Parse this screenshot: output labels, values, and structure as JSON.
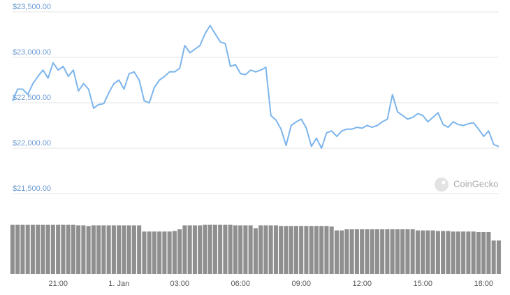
{
  "chart_data": {
    "type": "line",
    "yticks": [
      {
        "value": 23500,
        "label": "$23,500.00"
      },
      {
        "value": 23000,
        "label": "$23,000.00"
      },
      {
        "value": 22500,
        "label": "$22,500.00"
      },
      {
        "value": 22000,
        "label": "$22,000.00"
      },
      {
        "value": 21500,
        "label": "$21,500.00"
      }
    ],
    "ylim": [
      21500,
      23500
    ],
    "grid": true,
    "color": "#7cb5ec",
    "volume_color": "#8f8f8f",
    "volume_lim": [
      0,
      100
    ],
    "watermark": "CoinGecko",
    "categories": [
      null,
      null,
      null,
      null,
      null,
      null,
      null,
      null,
      null,
      "21:00",
      null,
      null,
      null,
      null,
      null,
      null,
      null,
      null,
      null,
      null,
      null,
      "1. Jan",
      null,
      null,
      null,
      null,
      null,
      null,
      null,
      null,
      null,
      null,
      null,
      "03:00",
      null,
      null,
      null,
      null,
      null,
      null,
      null,
      null,
      null,
      null,
      null,
      "06:00",
      null,
      null,
      null,
      null,
      null,
      null,
      null,
      null,
      null,
      null,
      null,
      "09:00",
      null,
      null,
      null,
      null,
      null,
      null,
      null,
      null,
      null,
      null,
      null,
      "12:00",
      null,
      null,
      null,
      null,
      null,
      null,
      null,
      null,
      null,
      null,
      null,
      "15:00",
      null,
      null,
      null,
      null,
      null,
      null,
      null,
      null,
      null,
      null,
      null,
      "18:00",
      null,
      null,
      null
    ],
    "values": [
      22520,
      22650,
      22650,
      22590,
      22710,
      22790,
      22860,
      22770,
      22940,
      22860,
      22900,
      22790,
      22860,
      22630,
      22710,
      22650,
      22440,
      22480,
      22490,
      22610,
      22710,
      22750,
      22650,
      22820,
      22840,
      22750,
      22520,
      22500,
      22670,
      22750,
      22790,
      22840,
      22840,
      22880,
      23130,
      23050,
      23090,
      23130,
      23260,
      23350,
      23260,
      23170,
      23150,
      22900,
      22920,
      22820,
      22810,
      22860,
      22840,
      22860,
      22890,
      22360,
      22310,
      22210,
      22030,
      22250,
      22290,
      22320,
      22220,
      22020,
      22110,
      22000,
      22170,
      22190,
      22130,
      22190,
      22210,
      22210,
      22230,
      22220,
      22250,
      22230,
      22250,
      22290,
      22320,
      22590,
      22400,
      22360,
      22320,
      22340,
      22380,
      22360,
      22290,
      22340,
      22390,
      22260,
      22230,
      22290,
      22260,
      22250,
      22270,
      22280,
      22210,
      22130,
      22190,
      22040,
      22020
    ],
    "volume": [
      88,
      88,
      88,
      88,
      88,
      88,
      88,
      88,
      88,
      88,
      88,
      88,
      88,
      87,
      87,
      86,
      87,
      87,
      87,
      87,
      87,
      87,
      87,
      87,
      87,
      87,
      76,
      76,
      76,
      76,
      76,
      76,
      77,
      80,
      87,
      87,
      87,
      87,
      88,
      88,
      88,
      88,
      88,
      88,
      87,
      87,
      87,
      87,
      82,
      87,
      87,
      87,
      87,
      86,
      86,
      86,
      86,
      86,
      86,
      86,
      86,
      86,
      86,
      85,
      78,
      78,
      80,
      80,
      80,
      80,
      80,
      80,
      80,
      80,
      80,
      80,
      80,
      80,
      80,
      80,
      78,
      78,
      78,
      78,
      77,
      77,
      77,
      76,
      76,
      76,
      76,
      76,
      75,
      75,
      75,
      60,
      60
    ]
  }
}
